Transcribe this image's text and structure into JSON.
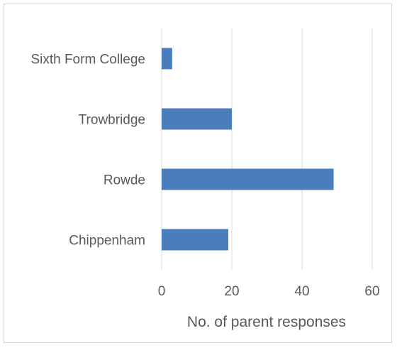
{
  "chart_data": {
    "type": "bar",
    "orientation": "horizontal",
    "categories": [
      "Sixth Form College",
      "Trowbridge",
      "Rowde",
      "Chippenham"
    ],
    "values": [
      3,
      20,
      49,
      19
    ],
    "xlabel": "No. of parent responses",
    "ylabel": "",
    "xlim": [
      0,
      60
    ],
    "x_ticks": [
      0,
      20,
      40,
      60
    ],
    "grid": "vertical",
    "legend": "none",
    "colors": {
      "bar": "#4a7ebb",
      "grid": "#d9d9d9",
      "text": "#595959"
    }
  }
}
